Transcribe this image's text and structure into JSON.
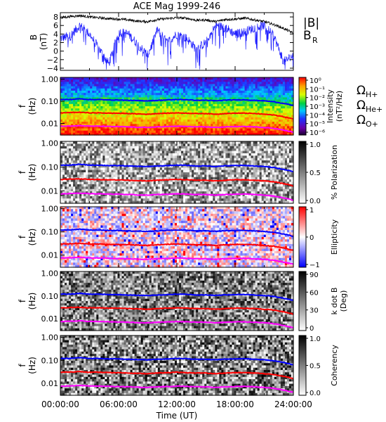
{
  "title": "ACE Mag 1999-246",
  "xlabel": "Time (UT)",
  "xticks": [
    "00:00:00",
    "06:00:00",
    "12:00:00",
    "18:00:00",
    "24:00:00"
  ],
  "colors": {
    "B_total": "#000000",
    "B_R": "#1f1fff",
    "H_plus": "#0000ff",
    "He_plus": "#ff0000",
    "O_plus": "#ff00ff"
  },
  "legend": {
    "B_total": "|B|",
    "B_R": "B",
    "B_R_sub": "R",
    "omega": "Ω",
    "H_sub": "H+",
    "He_sub": "He+",
    "O_sub": "O+"
  },
  "panels": [
    {
      "ylabel_top": "B",
      "ylabel_bottom": "(nT)",
      "yticks": [
        "8",
        "6",
        "4",
        "2",
        "0",
        "−2",
        "−4"
      ],
      "cbar_label": "",
      "cbar_label2": "",
      "cbar_ticks": []
    },
    {
      "ylabel_top": "f",
      "ylabel_bottom": "(Hz)",
      "yticks": [
        "1.00",
        "0.10",
        "0.01"
      ],
      "cbar_label": "Intensity",
      "cbar_label2": "(nT²/Hz)",
      "cbar_ticks": [
        "10⁰",
        "10⁻¹",
        "10⁻²",
        "10⁻³",
        "10⁻⁴",
        "10⁻⁵",
        "10⁻⁶"
      ]
    },
    {
      "ylabel_top": "f",
      "ylabel_bottom": "(Hz)",
      "yticks": [
        "1.00",
        "0.10",
        "0.01"
      ],
      "cbar_label": "% Polarization",
      "cbar_label2": "",
      "cbar_ticks": [
        "1.0",
        "0.5",
        "0.0"
      ]
    },
    {
      "ylabel_top": "f",
      "ylabel_bottom": "(Hz)",
      "yticks": [
        "1.00",
        "0.10",
        "0.01"
      ],
      "cbar_label": "Ellipticity",
      "cbar_label2": "",
      "cbar_ticks": [
        "1",
        "0",
        "−1"
      ]
    },
    {
      "ylabel_top": "f",
      "ylabel_bottom": "(Hz)",
      "yticks": [
        "1.00",
        "0.10",
        "0.01"
      ],
      "cbar_label": "k dot B",
      "cbar_label2": "(Deg)",
      "cbar_ticks": [
        "90",
        "60",
        "30",
        "0"
      ]
    },
    {
      "ylabel_top": "f",
      "ylabel_bottom": "(Hz)",
      "yticks": [
        "1.00",
        "0.10",
        "0.01"
      ],
      "cbar_label": "Coherency",
      "cbar_label2": "",
      "cbar_ticks": [
        "1.0",
        "0.5",
        "0.0"
      ]
    }
  ],
  "chart_data": {
    "type": "line",
    "title": "ACE Mag 1999-246",
    "xlabel": "Time (UT)",
    "x_hours": [
      0,
      1,
      2,
      3,
      4,
      5,
      6,
      7,
      8,
      9,
      10,
      11,
      12,
      13,
      14,
      15,
      16,
      17,
      18,
      19,
      20,
      21,
      22,
      23,
      24
    ],
    "series": [
      {
        "name": "|B|",
        "panel": 0,
        "unit": "nT",
        "values": [
          7.8,
          8.1,
          8.3,
          8.0,
          7.8,
          7.6,
          7.5,
          7.3,
          7.0,
          6.9,
          7.4,
          7.6,
          7.8,
          7.7,
          7.2,
          7.3,
          6.9,
          7.4,
          7.5,
          7.7,
          7.3,
          6.9,
          6.2,
          5.3,
          4.2
        ]
      },
      {
        "name": "B_R",
        "panel": 0,
        "unit": "nT",
        "values": [
          3.0,
          3.5,
          6.0,
          4.0,
          0.5,
          -3.0,
          4.5,
          4.0,
          1.5,
          -1.0,
          5.0,
          2.0,
          4.0,
          3.0,
          0.5,
          2.0,
          6.0,
          5.5,
          4.0,
          4.5,
          5.5,
          6.0,
          3.5,
          -2.5,
          -1.0
        ]
      },
      {
        "name": "Ω_H+",
        "unit": "Hz",
        "values": [
          0.12,
          0.12,
          0.13,
          0.12,
          0.12,
          0.115,
          0.115,
          0.11,
          0.107,
          0.105,
          0.11,
          0.115,
          0.12,
          0.118,
          0.11,
          0.112,
          0.105,
          0.113,
          0.115,
          0.117,
          0.11,
          0.105,
          0.095,
          0.08,
          0.064
        ]
      },
      {
        "name": "Ω_He+",
        "unit": "Hz",
        "values": [
          0.03,
          0.031,
          0.032,
          0.03,
          0.03,
          0.029,
          0.029,
          0.028,
          0.027,
          0.026,
          0.028,
          0.029,
          0.03,
          0.029,
          0.028,
          0.028,
          0.026,
          0.028,
          0.029,
          0.029,
          0.028,
          0.026,
          0.024,
          0.02,
          0.016
        ]
      },
      {
        "name": "Ω_O+",
        "unit": "Hz",
        "values": [
          0.0075,
          0.0077,
          0.008,
          0.0076,
          0.0075,
          0.0073,
          0.0072,
          0.007,
          0.0067,
          0.0066,
          0.007,
          0.0072,
          0.0075,
          0.0073,
          0.007,
          0.007,
          0.0066,
          0.007,
          0.0072,
          0.0073,
          0.007,
          0.0066,
          0.006,
          0.005,
          0.004
        ]
      }
    ],
    "panel0_ylim": [
      -4.5,
      9
    ],
    "freq_ylim_hz": [
      0.003,
      1.2
    ],
    "yscale_freq": "log"
  }
}
